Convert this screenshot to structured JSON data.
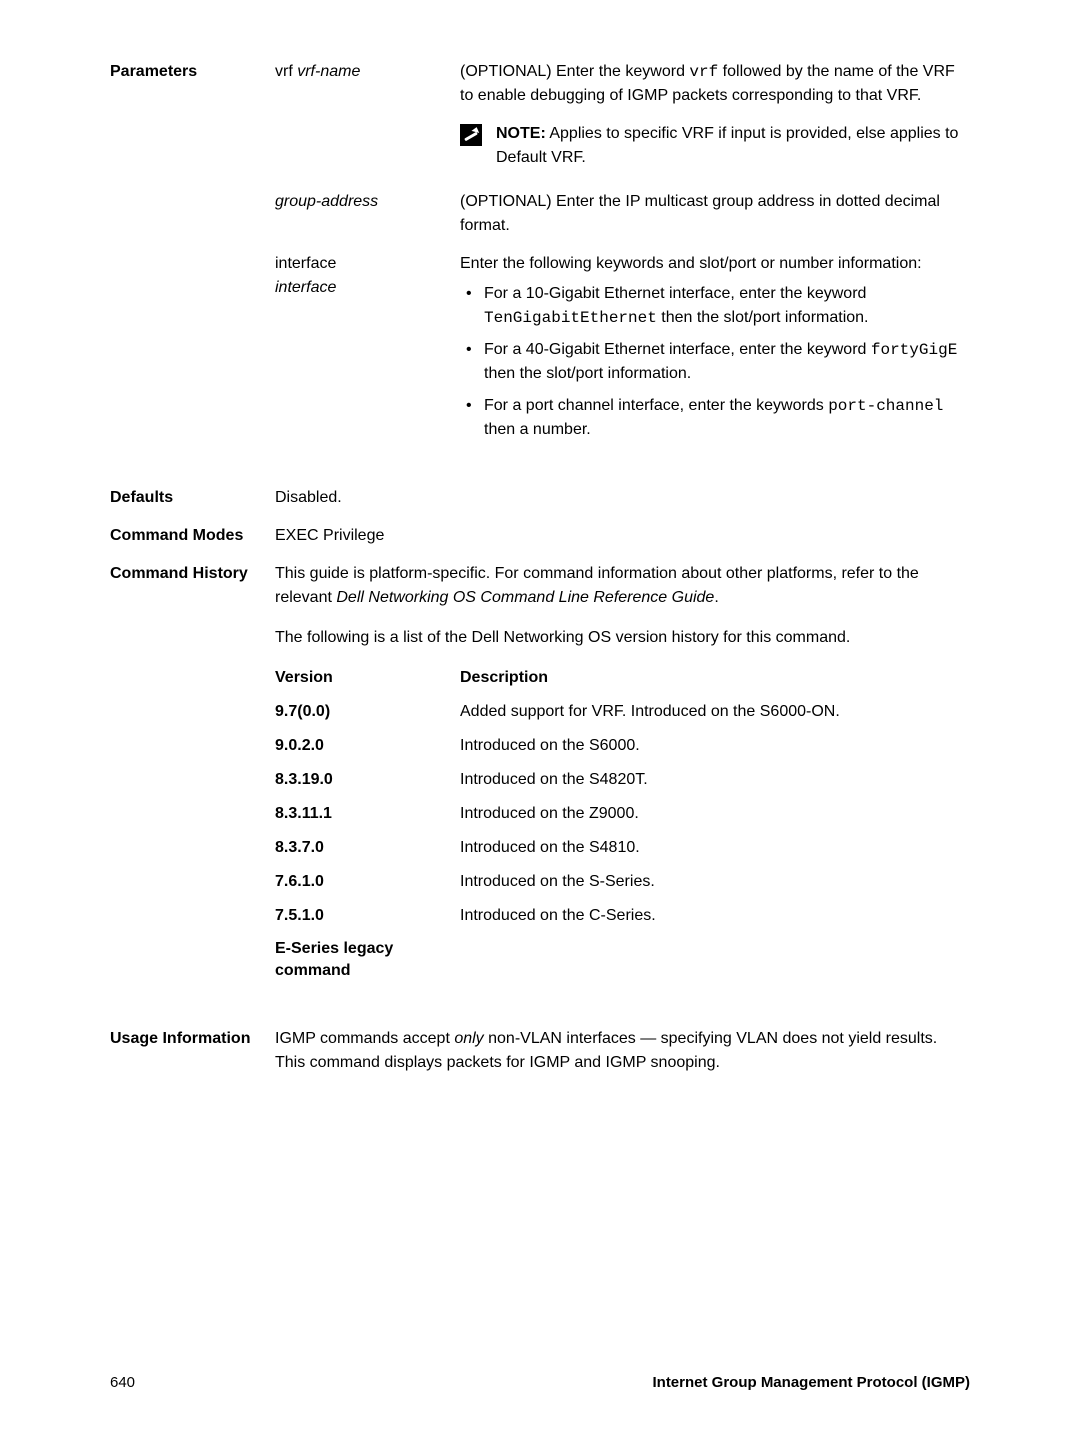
{
  "params_label": "Parameters",
  "vrf": {
    "name_prefix": "vrf ",
    "name_var": "vrf-name",
    "desc_a": "(OPTIONAL) Enter the keyword ",
    "desc_code": "vrf",
    "desc_b": " followed by the name of the VRF to enable debugging of IGMP packets corresponding to that VRF.",
    "note_label": "NOTE:",
    "note_text": " Applies to specific VRF if input is provided, else applies to Default VRF."
  },
  "group_address": {
    "name": "group-address",
    "desc": "(OPTIONAL) Enter the IP multicast group address in dotted decimal format."
  },
  "interface": {
    "name_top": "interface",
    "name_var": "interface",
    "desc": "Enter the following keywords and slot/port or number information:",
    "b1a": "For a 10-Gigabit Ethernet interface, enter the keyword ",
    "b1code": "TenGigabitEthernet",
    "b1b": " then the slot/port information.",
    "b2a": "For a 40-Gigabit Ethernet interface, enter the keyword ",
    "b2code": "fortyGigE",
    "b2b": " then the slot/port information.",
    "b3a": "For a port channel interface, enter the keywords ",
    "b3code": "port-channel",
    "b3b": " then a number."
  },
  "defaults_label": "Defaults",
  "defaults_value": "Disabled.",
  "cmd_modes_label": "Command Modes",
  "cmd_modes_value": "EXEC Privilege",
  "cmd_hist_label": "Command History",
  "cmd_hist_p1a": "This guide is platform-specific. For command information about other platforms, refer to the relevant ",
  "cmd_hist_p1i": "Dell Networking OS Command Line Reference Guide",
  "cmd_hist_p1b": ".",
  "cmd_hist_p2": "The following is a list of the Dell Networking OS version history for this command.",
  "ver_header_v": "Version",
  "ver_header_d": "Description",
  "versions": [
    {
      "v": "9.7(0.0)",
      "d": "Added support for VRF. Introduced on the S6000-ON."
    },
    {
      "v": "9.0.2.0",
      "d": "Introduced on the S6000."
    },
    {
      "v": "8.3.19.0",
      "d": "Introduced on the S4820T."
    },
    {
      "v": "8.3.11.1",
      "d": "Introduced on the Z9000."
    },
    {
      "v": "8.3.7.0",
      "d": "Introduced on the S4810."
    },
    {
      "v": "7.6.1.0",
      "d": "Introduced on the S-Series."
    },
    {
      "v": "7.5.1.0",
      "d": "Introduced on the C-Series."
    }
  ],
  "eseries": "E-Series legacy command",
  "usage_label": "Usage Information",
  "usage_a": "IGMP commands accept ",
  "usage_i": "only",
  "usage_b": " non-VLAN interfaces — specifying VLAN does not yield results. This command displays packets for IGMP and IGMP snooping.",
  "footer_page": "640",
  "footer_title": "Internet Group Management Protocol (IGMP)"
}
